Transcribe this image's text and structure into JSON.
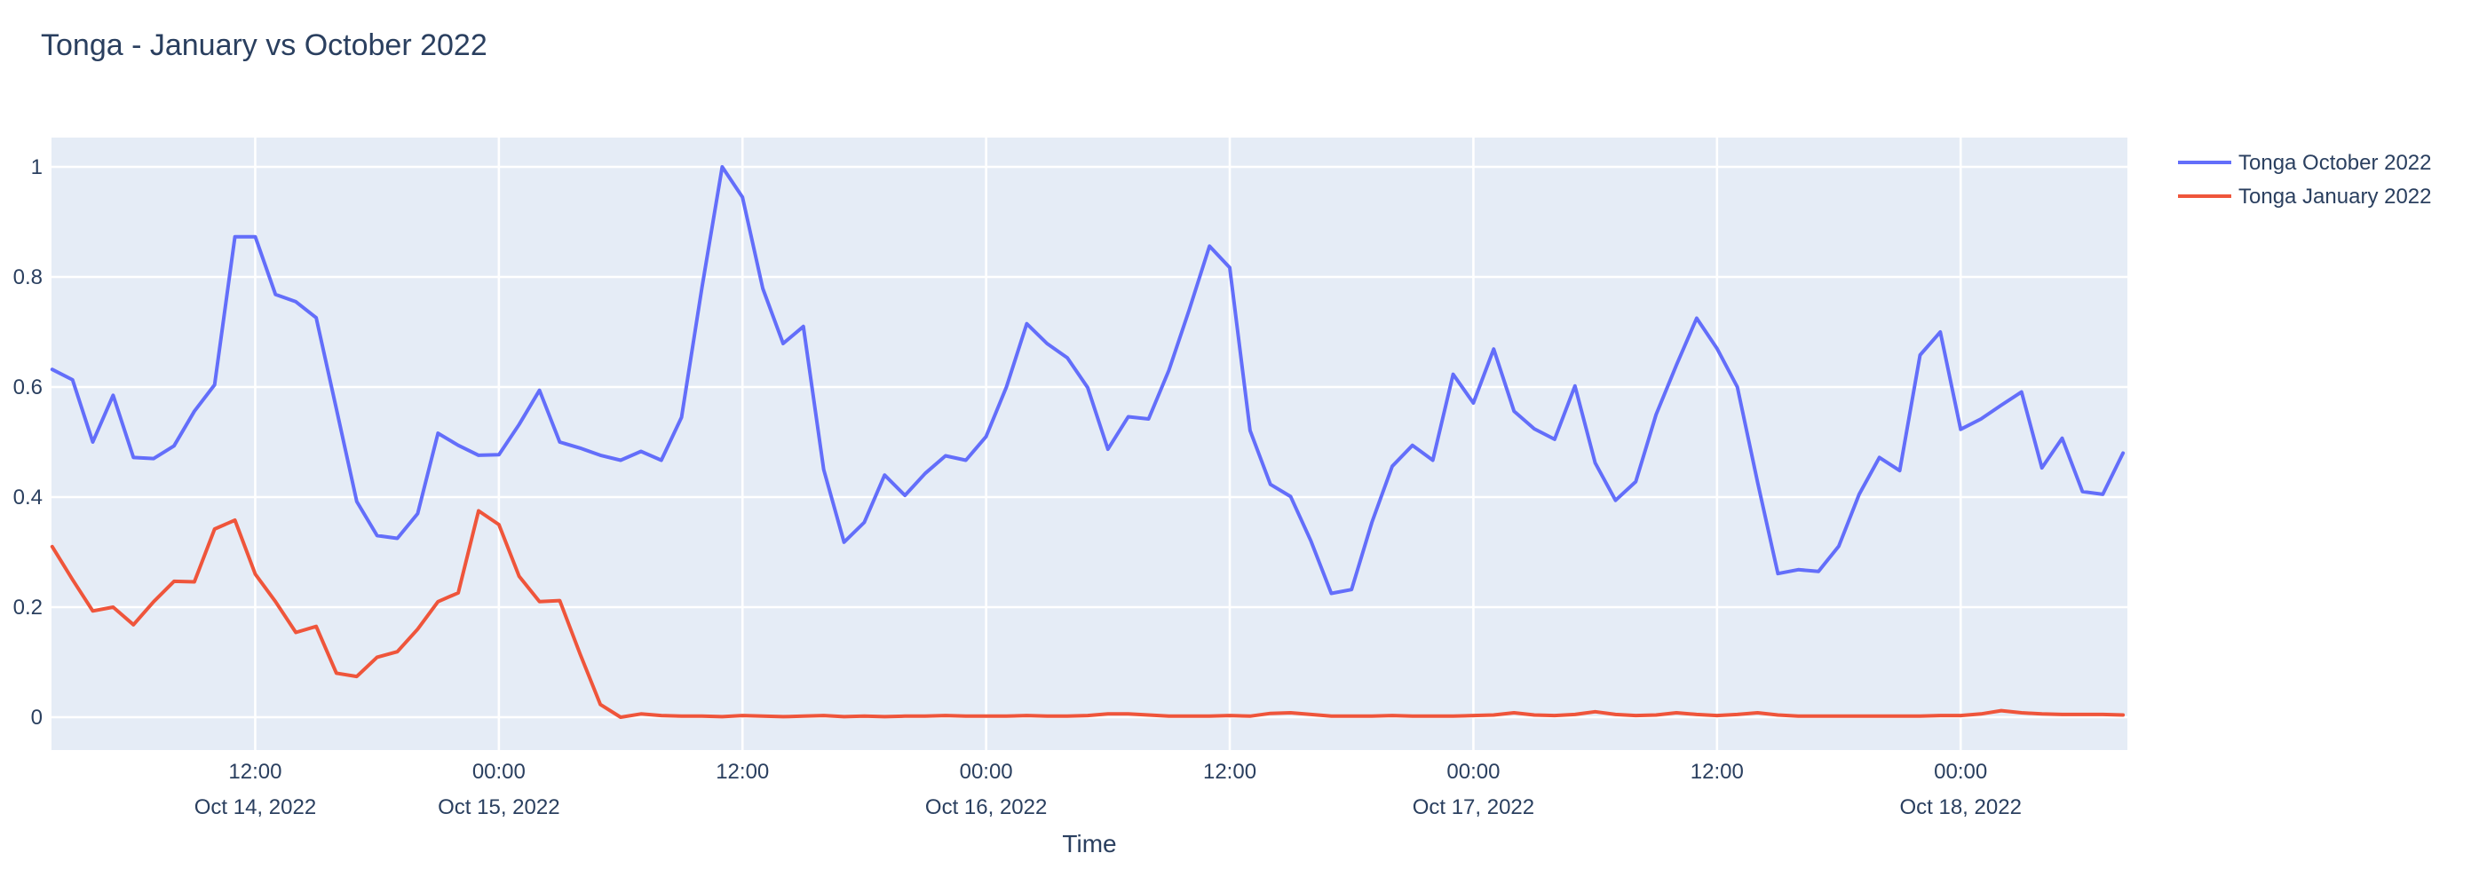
{
  "title": "Tonga - January vs October 2022",
  "xaxis": {
    "title": "Time"
  },
  "legend": [
    {
      "label": "Tonga October 2022",
      "color": "#636EFA"
    },
    {
      "label": "Tonga January 2022",
      "color": "#EF553B"
    }
  ],
  "yticks": [
    {
      "value": 0,
      "label": "0"
    },
    {
      "value": 0.2,
      "label": "0.2"
    },
    {
      "value": 0.4,
      "label": "0.4"
    },
    {
      "value": 0.6,
      "label": "0.6"
    },
    {
      "value": 0.8,
      "label": "0.8"
    },
    {
      "value": 1,
      "label": "1"
    }
  ],
  "xticks": [
    {
      "hour": 10,
      "time": "12:00",
      "date": "Oct 14, 2022"
    },
    {
      "hour": 22,
      "time": "00:00",
      "date": "Oct 15, 2022"
    },
    {
      "hour": 34,
      "time": "12:00",
      "date": ""
    },
    {
      "hour": 46,
      "time": "00:00",
      "date": "Oct 16, 2022"
    },
    {
      "hour": 58,
      "time": "12:00",
      "date": ""
    },
    {
      "hour": 70,
      "time": "00:00",
      "date": "Oct 17, 2022"
    },
    {
      "hour": 82,
      "time": "12:00",
      "date": ""
    },
    {
      "hour": 94,
      "time": "00:00",
      "date": "Oct 18, 2022"
    }
  ],
  "chart_data": {
    "type": "line",
    "title": "Tonga - January vs October 2022",
    "xlabel": "Time",
    "ylabel": "",
    "x_start": "2022-10-14 02:00",
    "x_step_hours": 1,
    "n_points": 103,
    "x_end": "2022-10-18 08:00",
    "ylim": [
      -0.06,
      1.055
    ],
    "grid": true,
    "plot_bgcolor": "#E5ECF6",
    "gridcolor": "#FFFFFF",
    "legend_position": "top-right-outside",
    "x_tick_hours": [
      10,
      22,
      34,
      46,
      58,
      70,
      82,
      94
    ],
    "series": [
      {
        "name": "Tonga October 2022",
        "color": "#636EFA",
        "values": [
          0.632,
          0.613,
          0.5,
          0.585,
          0.472,
          0.47,
          0.493,
          0.556,
          0.604,
          0.873,
          0.873,
          0.768,
          0.755,
          0.726,
          0.56,
          0.392,
          0.33,
          0.325,
          0.37,
          0.516,
          0.494,
          0.476,
          0.477,
          0.532,
          0.594,
          0.5,
          0.489,
          0.476,
          0.467,
          0.483,
          0.467,
          0.545,
          0.78,
          1.0,
          0.945,
          0.779,
          0.679,
          0.71,
          0.45,
          0.318,
          0.354,
          0.44,
          0.403,
          0.443,
          0.475,
          0.467,
          0.51,
          0.6,
          0.715,
          0.679,
          0.653,
          0.599,
          0.487,
          0.546,
          0.542,
          0.63,
          0.74,
          0.856,
          0.817,
          0.521,
          0.423,
          0.401,
          0.32,
          0.225,
          0.232,
          0.354,
          0.456,
          0.494,
          0.467,
          0.623,
          0.571,
          0.669,
          0.556,
          0.524,
          0.505,
          0.602,
          0.462,
          0.394,
          0.428,
          0.55,
          0.64,
          0.725,
          0.67,
          0.6,
          0.427,
          0.261,
          0.268,
          0.265,
          0.311,
          0.405,
          0.472,
          0.448,
          0.658,
          0.7,
          0.523,
          0.542,
          0.567,
          0.591,
          0.453,
          0.507,
          0.41,
          0.405,
          0.48
        ]
      },
      {
        "name": "Tonga January 2022",
        "color": "#EF553B",
        "values": [
          0.31,
          0.25,
          0.193,
          0.2,
          0.168,
          0.21,
          0.247,
          0.246,
          0.342,
          0.358,
          0.26,
          0.21,
          0.154,
          0.165,
          0.08,
          0.074,
          0.109,
          0.119,
          0.16,
          0.21,
          0.226,
          0.375,
          0.35,
          0.256,
          0.21,
          0.212,
          0.115,
          0.023,
          0.0,
          0.006,
          0.003,
          0.002,
          0.002,
          0.001,
          0.003,
          0.002,
          0.001,
          0.002,
          0.003,
          0.001,
          0.002,
          0.001,
          0.002,
          0.002,
          0.003,
          0.002,
          0.002,
          0.002,
          0.003,
          0.002,
          0.002,
          0.003,
          0.006,
          0.006,
          0.004,
          0.002,
          0.002,
          0.002,
          0.003,
          0.002,
          0.007,
          0.008,
          0.005,
          0.002,
          0.002,
          0.002,
          0.003,
          0.002,
          0.002,
          0.002,
          0.003,
          0.004,
          0.008,
          0.004,
          0.003,
          0.005,
          0.01,
          0.005,
          0.003,
          0.004,
          0.008,
          0.005,
          0.003,
          0.005,
          0.008,
          0.004,
          0.002,
          0.002,
          0.002,
          0.002,
          0.002,
          0.002,
          0.002,
          0.003,
          0.003,
          0.006,
          0.012,
          0.008,
          0.006,
          0.005,
          0.005,
          0.005,
          0.004
        ]
      }
    ]
  }
}
